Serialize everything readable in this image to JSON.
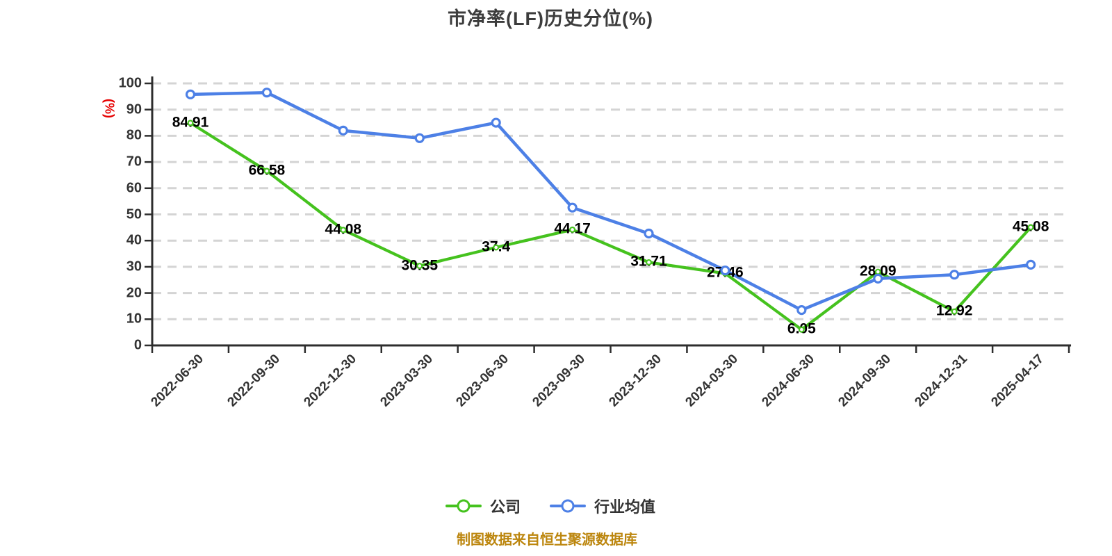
{
  "title": "市净率(LF)历史分位(%)",
  "y_axis_label": "(%)",
  "source_note": "制图数据来自恒生聚源数据库",
  "legend": [
    {
      "label": "公司"
    },
    {
      "label": "行业均值"
    }
  ],
  "colors": {
    "company_green": "#45c21e",
    "industry_blue": "#4d80e6",
    "grid_gray": "#d4d4d4",
    "axis_dark": "#2d2d2d",
    "tick_text": "#333333",
    "ylabel_red": "#e60000",
    "footer_orange": "#bc860e"
  },
  "chart_data": {
    "type": "line",
    "title": "市净率(LF)历史分位(%)",
    "ylabel": "(%)",
    "ylim": [
      0,
      100
    ],
    "y_ticks": [
      0,
      10,
      20,
      30,
      40,
      50,
      60,
      70,
      80,
      90,
      100
    ],
    "grid": "horizontal dashed",
    "legend_position": "bottom",
    "categories": [
      "2022-06-30",
      "2022-09-30",
      "2022-12-30",
      "2023-03-30",
      "2023-06-30",
      "2023-09-30",
      "2023-12-30",
      "2024-03-30",
      "2024-06-30",
      "2024-09-30",
      "2024-12-31",
      "2025-04-17"
    ],
    "series": [
      {
        "name": "公司",
        "color": "#45c21e",
        "values": [
          84.91,
          66.58,
          44.08,
          30.35,
          37.4,
          44.17,
          31.71,
          27.46,
          6.05,
          28.09,
          12.92,
          45.08
        ],
        "value_labels": [
          "84.91",
          "66.58",
          "44.08",
          "30.35",
          "37.4",
          "44.17",
          "31.71",
          "27.46",
          "6.05",
          "28.09",
          "12.92",
          "45.08"
        ],
        "labels_shown": true
      },
      {
        "name": "行业均值",
        "color": "#4d80e6",
        "values": [
          95.8,
          96.5,
          82.0,
          79.1,
          85.0,
          52.6,
          42.7,
          28.6,
          13.5,
          25.5,
          27.0,
          30.8
        ],
        "labels_shown": false
      }
    ]
  }
}
